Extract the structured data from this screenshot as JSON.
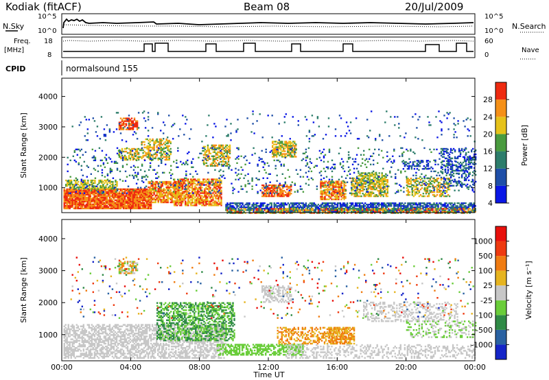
{
  "header": {
    "radar": "Kodiak (fitACF)",
    "beam": "Beam 08",
    "date": "20/Jul/2009"
  },
  "summary_panels": {
    "nsky_label": "N.Sky",
    "nsearch_label": "N.Search",
    "n_ticks": [
      "10^5",
      "10^0"
    ],
    "freq_label": "Freq.",
    "freq_unit": "[MHz]",
    "freq_ticks": [
      "18",
      "8"
    ],
    "nave_label": "Nave",
    "nave_ticks": [
      "60",
      "0"
    ],
    "cpid_label": "CPID",
    "cpid_value": "normalsound 155"
  },
  "chart_data": [
    {
      "type": "heatmap",
      "name": "power",
      "ylabel": "Slant Range [km]",
      "yticks": [
        "4000",
        "3000",
        "2000",
        "1000"
      ],
      "ylim": [
        180,
        4600
      ],
      "colorbar_label": "Power [dB]",
      "colorbar_ticks": [
        "28",
        "24",
        "20",
        "16",
        "12",
        "8",
        "4"
      ],
      "colors": [
        "#0a17e6",
        "#1f4fa8",
        "#2d7d6b",
        "#4a9b3f",
        "#e6c21a",
        "#f59018",
        "#ee2a10"
      ]
    },
    {
      "type": "heatmap",
      "name": "velocity",
      "ylabel": "Slant Range [km]",
      "yticks": [
        "4000",
        "3000",
        "2000",
        "1000"
      ],
      "ylim": [
        180,
        4600
      ],
      "colorbar_label": "Velocity [m s⁻¹]",
      "colorbar_ticks": [
        "1000",
        "500",
        "100",
        "25",
        "-25",
        "-100",
        "-500",
        "-1000"
      ],
      "colors": [
        "#1525c8",
        "#2a62a2",
        "#2f8a46",
        "#6acd3a",
        "#c7c7c7",
        "#e6b420",
        "#f07c12",
        "#ee3a10",
        "#e8100c"
      ]
    }
  ],
  "time_axis": {
    "ticks": [
      "00:00",
      "04:00",
      "08:00",
      "12:00",
      "16:00",
      "20:00",
      "00:00"
    ],
    "xlabel": "Time UT",
    "xlim_hours": [
      0,
      24
    ]
  }
}
